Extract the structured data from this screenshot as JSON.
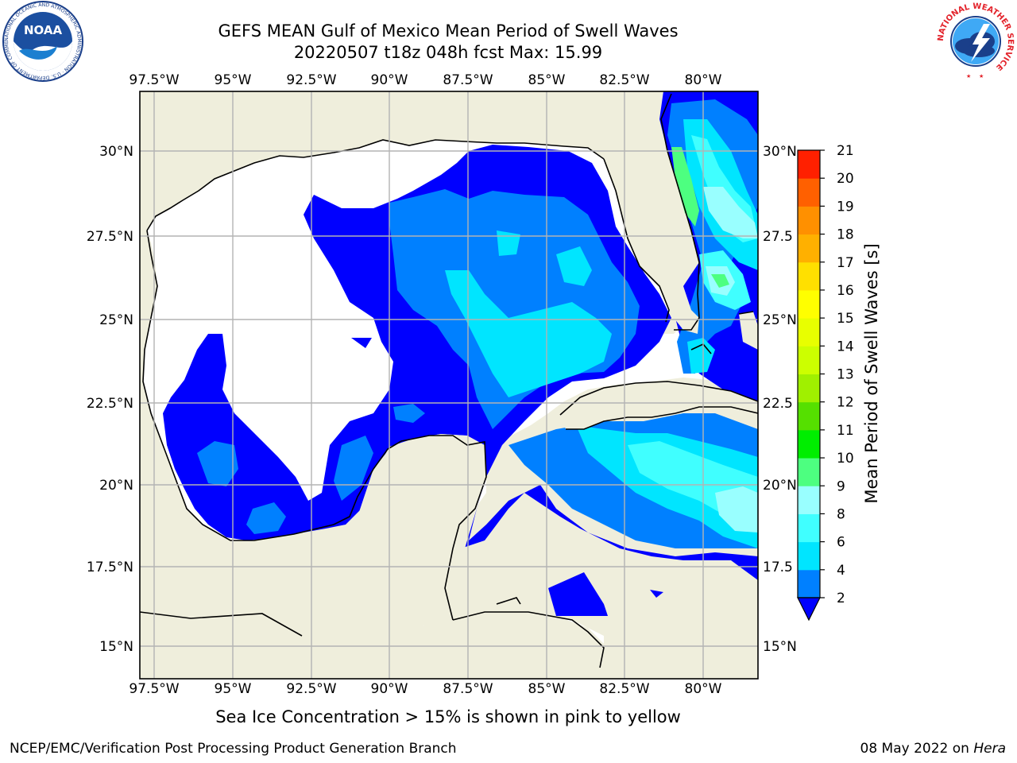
{
  "header": {
    "title_line1": "GEFS MEAN Gulf of Mexico Mean Period of Swell Waves",
    "title_line2": "20220507 t18z 048h fcst   Max: 15.99"
  },
  "map": {
    "lon_ticks": [
      "97.5°W",
      "95°W",
      "92.5°W",
      "90°W",
      "87.5°W",
      "85°W",
      "82.5°W",
      "80°W"
    ],
    "lat_ticks_left": [
      "30°N",
      "27.5°N",
      "25°N",
      "22.5°N",
      "20°N",
      "17.5°N",
      "15°N"
    ],
    "lat_ticks_right": [
      "30°N",
      "27.5",
      "25°N",
      "22.5",
      "20°N",
      "17.5",
      "15°N"
    ],
    "land_color": "#efeedc",
    "ocean_color": "#ffffff",
    "grid_color": "#b3b3b3"
  },
  "colorbar": {
    "label": "Mean Period of Swell Waves [s]",
    "ticks": [
      "2",
      "4",
      "6",
      "8",
      "9",
      "10",
      "11",
      "12",
      "13",
      "14",
      "15",
      "16",
      "17",
      "18",
      "19",
      "20",
      "21"
    ],
    "colors": [
      "#0080ff",
      "#00e5ff",
      "#40ffff",
      "#99ffff",
      "#4dff80",
      "#00ee00",
      "#55e000",
      "#a0f000",
      "#ccff00",
      "#e8ff00",
      "#ffff00",
      "#ffe000",
      "#ffb000",
      "#ff9000",
      "#ff6000",
      "#ff2000"
    ],
    "under_color": "#0000ff"
  },
  "footnote": "Sea Ice Concentration > 15% is shown in pink to yellow",
  "footer": {
    "credit": "NCEP/EMC/Verification Post Processing Product Generation Branch",
    "date": "08 May 2022 on ",
    "machine": "Hera"
  },
  "logos": {
    "noaa_text": "NOAA",
    "noaa_ring": "NATIONAL OCEANIC AND ATMOSPHERIC ADMINISTRATION · U.S. DEPARTMENT OF COMMERCE",
    "nws_ring": "NATIONAL WEATHER SERVICE"
  }
}
